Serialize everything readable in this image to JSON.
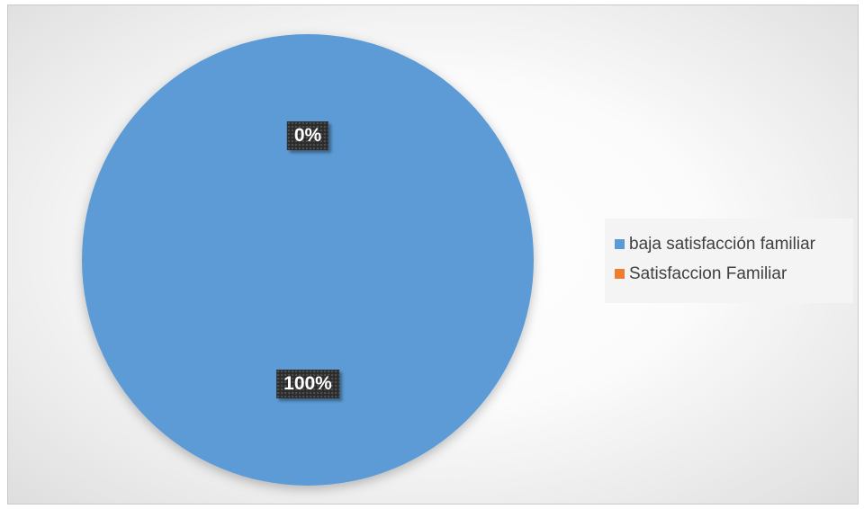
{
  "chart_data": {
    "type": "pie",
    "title": "",
    "slices": [
      {
        "label": "baja satisfacción familiar",
        "value": 100,
        "display": "100%",
        "color": "#5B9BD5"
      },
      {
        "label": "Satisfaccion Familiar",
        "value": 0,
        "display": "0%",
        "color": "#ED7D31"
      }
    ],
    "legend_position": "right",
    "data_labels": true
  }
}
